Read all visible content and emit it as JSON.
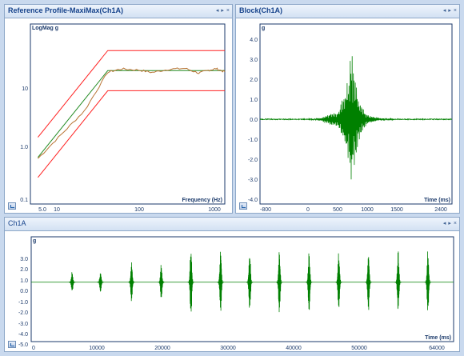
{
  "panels": {
    "ref": {
      "title": "Reference Profile-MaxiMax(Ch1A)",
      "ylabel": "LogMag g",
      "xlabel": "Frequency (Hz)",
      "yticks": [
        "10",
        "1.0",
        "0.1"
      ],
      "xticks": [
        "5.0",
        "10",
        "100",
        "1000"
      ]
    },
    "block": {
      "title": "Block(Ch1A)",
      "ylabel": "g",
      "xlabel": "Time (ms)",
      "yticks": [
        "4.0",
        "3.0",
        "2.0",
        "1.0",
        "0.0",
        "-1.0",
        "-2.0",
        "-3.0",
        "-4.0"
      ],
      "xticks": [
        "-800",
        "0",
        "500",
        "1000",
        "1500",
        "2400"
      ]
    },
    "ch1a": {
      "title": "Ch1A",
      "ylabel": "g",
      "xlabel": "Time (ms)",
      "yticks": [
        "3.0",
        "2.0",
        "1.0",
        "0.0",
        "-1.0",
        "-2.0",
        "-3.0",
        "-4.0",
        "-5.0"
      ],
      "xticks": [
        "0",
        "10000",
        "20000",
        "30000",
        "40000",
        "50000",
        "64000"
      ]
    }
  },
  "header_buttons": [
    "◂",
    "▸",
    "×"
  ],
  "colors": {
    "reference": "#228B22",
    "measured": "#B87333",
    "limits": "#FF2020",
    "signal": "#008000"
  },
  "chart_data": [
    {
      "type": "line",
      "title": "Reference Profile-MaxiMax(Ch1A)",
      "xlabel": "Frequency (Hz)",
      "ylabel": "LogMag g",
      "xscale": "log",
      "yscale": "log",
      "xlim": [
        4,
        1300
      ],
      "ylim": [
        0.1,
        50
      ],
      "series": [
        {
          "x": [
            5,
            40,
            1300
          ],
          "y": [
            0.5,
            10,
            10
          ]
        },
        {
          "x": [
            5,
            40,
            1300
          ],
          "y": [
            1,
            20,
            20
          ]
        },
        {
          "x": [
            5,
            40,
            1300
          ],
          "y": [
            0.25,
            5,
            5
          ]
        },
        {
          "x": [
            5,
            10,
            20,
            40,
            60,
            100,
            150,
            250,
            400,
            600,
            800,
            1000,
            1300
          ],
          "y": [
            0.48,
            1.1,
            2.5,
            9.5,
            10.6,
            10.2,
            9.4,
            10.5,
            10.8,
            9.2,
            10.1,
            10.7,
            9.6
          ]
        }
      ]
    },
    {
      "type": "line",
      "title": "Block(Ch1A)",
      "xlabel": "Time (ms)",
      "ylabel": "g",
      "xlim": [
        -800,
        2400
      ],
      "ylim": [
        -4,
        4.5
      ],
      "series": [
        {
          "x": [
            -800,
            0,
            200,
            350,
            500,
            600,
            650,
            700,
            720,
            740,
            760,
            780,
            800,
            850,
            900,
            1000,
            1200,
            1500,
            2400
          ],
          "y": [
            0,
            0,
            0.05,
            -0.25,
            0.4,
            -1.3,
            1.8,
            -2.8,
            3.5,
            -3.2,
            2.4,
            -2.2,
            2.0,
            -1.0,
            0.6,
            -0.2,
            0.05,
            0,
            0
          ]
        }
      ]
    },
    {
      "type": "line",
      "title": "Ch1A",
      "xlabel": "Time (ms)",
      "ylabel": "g",
      "xlim": [
        0,
        64000
      ],
      "ylim": [
        -5.5,
        4.2
      ],
      "series": [
        {
          "x": [
            6200,
            10500,
            15200,
            19700,
            24200,
            28700,
            33100,
            37600,
            42100,
            46600,
            51100,
            55600,
            60100
          ],
          "y": [
            1.0,
            1.0,
            2.0,
            1.8,
            3.6,
            3.1,
            3.2,
            3.1,
            3.1,
            3.1,
            3.1,
            3.2,
            3.1
          ]
        }
      ]
    }
  ]
}
